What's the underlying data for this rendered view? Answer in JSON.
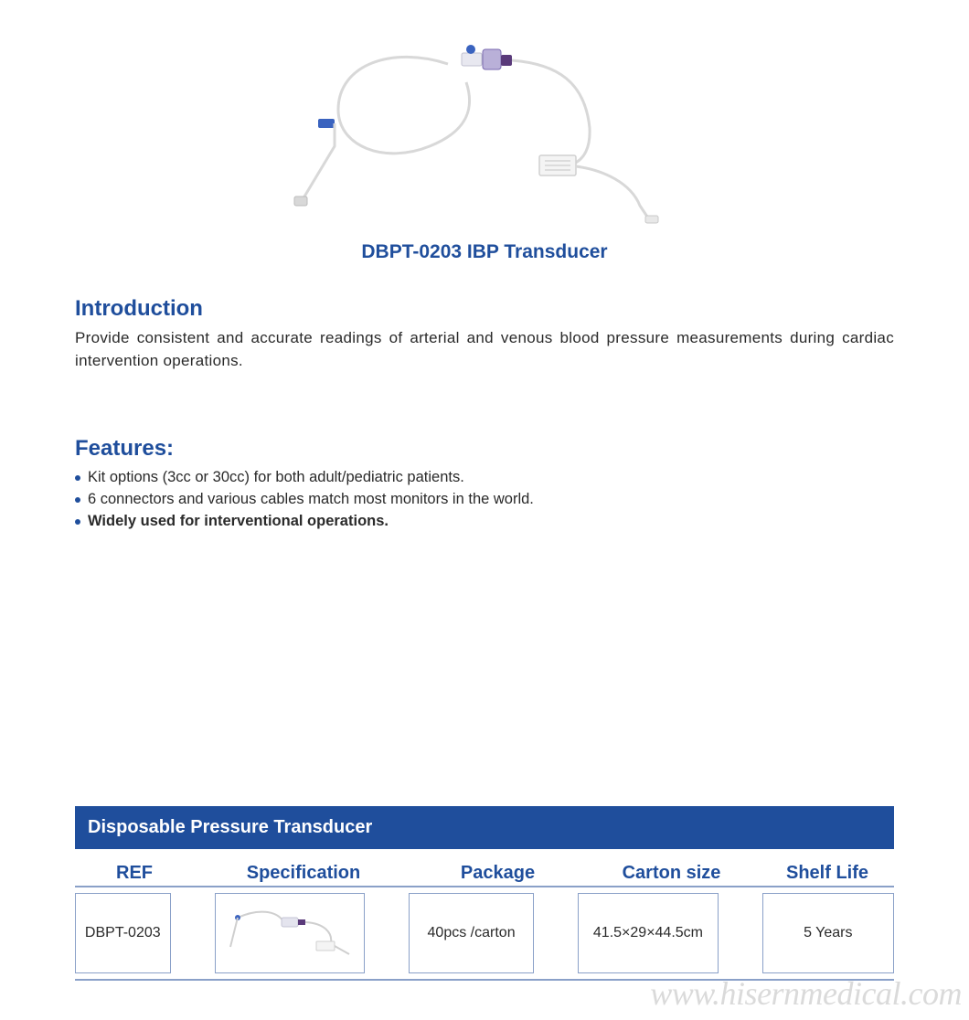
{
  "colors": {
    "brand_blue": "#1f4e9c",
    "body_text": "#2a2a2a",
    "bullet": "#1f4e9c",
    "table_header_bg": "#1f4e9c",
    "table_border": "#8aa0c8",
    "watermark": "rgba(150,150,150,0.35)",
    "product_tube": "#d8d8d8",
    "product_accent": "#3a63bf",
    "product_dark": "#5a3a7a"
  },
  "product": {
    "title": "DBPT-0203 IBP Transducer"
  },
  "introduction": {
    "heading": "Introduction",
    "body": "Provide consistent and accurate readings of arterial and venous blood pressure measurements during cardiac intervention operations."
  },
  "features": {
    "heading": "Features:",
    "items": [
      {
        "text": "Kit options (3cc or 30cc) for both adult/pediatric patients.",
        "bold": false
      },
      {
        "text": "6 connectors and various cables match most monitors in the world.",
        "bold": false
      },
      {
        "text": "Widely used for interventional operations.",
        "bold": true
      }
    ]
  },
  "table": {
    "title": "Disposable Pressure Transducer",
    "headers": {
      "ref": "REF",
      "spec": "Specification",
      "pkg": "Package",
      "carton": "Carton  size",
      "shelf": "Shelf Life"
    },
    "row": {
      "ref": "DBPT-0203",
      "pkg": "40pcs /carton",
      "carton": "41.5×29×44.5cm",
      "shelf": "5 Years"
    }
  },
  "watermark": "www.hisernmedical.com"
}
